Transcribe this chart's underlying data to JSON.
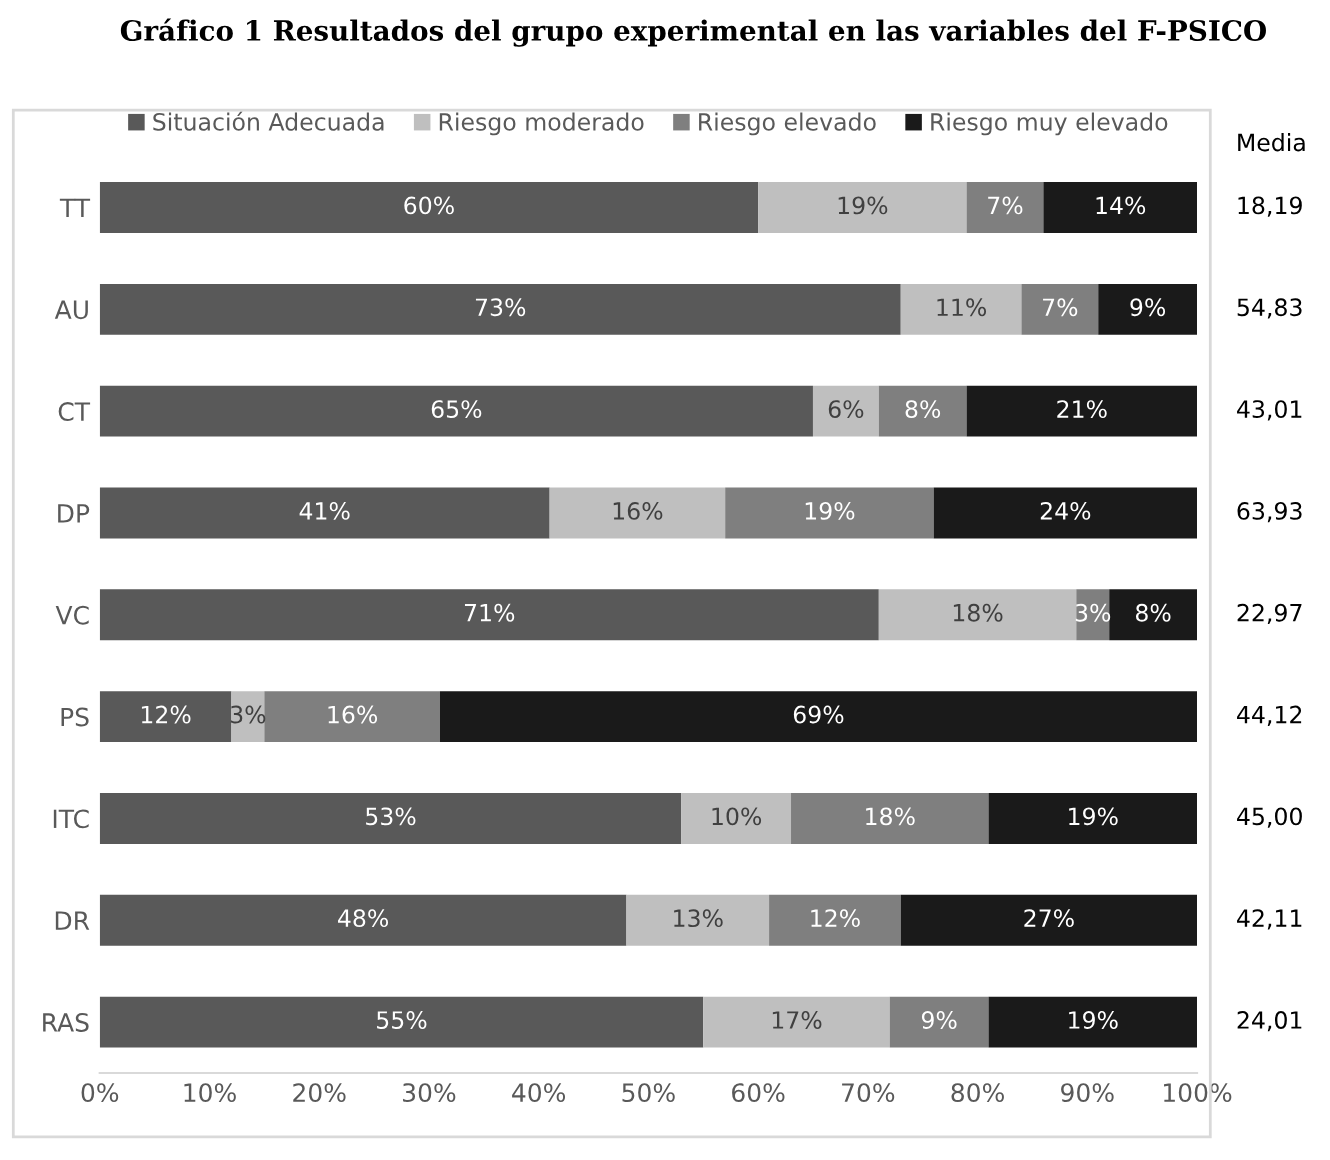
{
  "chart_data": {
    "type": "bar",
    "orientation": "horizontal",
    "stacked": true,
    "title": "Gráfico 1 Resultados del grupo experimental en las variables del F-PSICO",
    "categories": [
      "TT",
      "AU",
      "CT",
      "DP",
      "VC",
      "PS",
      "ITC",
      "DR",
      "RAS"
    ],
    "series": [
      {
        "name": "Situación Adecuada",
        "color": "#595959",
        "values": [
          60,
          73,
          65,
          41,
          71,
          12,
          53,
          48,
          55
        ],
        "value_labels": [
          "60%",
          "73%",
          "65%",
          "41%",
          "71%",
          "12%",
          "53%",
          "48%",
          "55%"
        ]
      },
      {
        "name": "Riesgo moderado",
        "color": "#bfbfbf",
        "values": [
          19,
          11,
          6,
          16,
          18,
          3,
          10,
          13,
          17
        ],
        "value_labels": [
          "19%",
          "11%",
          "6%",
          "16%",
          "18%",
          "3%",
          "10%",
          "13%",
          "17%"
        ]
      },
      {
        "name": "Riesgo elevado",
        "color": "#7f7f7f",
        "values": [
          7,
          7,
          8,
          19,
          3,
          16,
          18,
          12,
          9
        ],
        "value_labels": [
          "7%",
          "7%",
          "8%",
          "19%",
          "3%",
          "16%",
          "18%",
          "12%",
          "9%"
        ]
      },
      {
        "name": "Riesgo muy elevado",
        "color": "#1a1a1a",
        "values": [
          14,
          9,
          21,
          24,
          8,
          69,
          19,
          27,
          19
        ],
        "value_labels": [
          "14%",
          "9%",
          "21%",
          "24%",
          "8%",
          "69%",
          "19%",
          "27%",
          "19%"
        ]
      }
    ],
    "xlim": [
      0,
      100
    ],
    "xticks": [
      {
        "value": 0,
        "label": "0%"
      },
      {
        "value": 10,
        "label": "10%"
      },
      {
        "value": 20,
        "label": "20%"
      },
      {
        "value": 30,
        "label": "30%"
      },
      {
        "value": 40,
        "label": "40%"
      },
      {
        "value": 50,
        "label": "50%"
      },
      {
        "value": 60,
        "label": "60%"
      },
      {
        "value": 70,
        "label": "70%"
      },
      {
        "value": 80,
        "label": "80%"
      },
      {
        "value": 90,
        "label": "90%"
      },
      {
        "value": 100,
        "label": "100%"
      }
    ],
    "legend": "top",
    "grid": false,
    "annotations": [
      "Media",
      "18,19",
      "54,83",
      "43,01",
      "63,93",
      "22,97",
      "44,12",
      "45,00",
      "42,11",
      "24,01"
    ]
  }
}
